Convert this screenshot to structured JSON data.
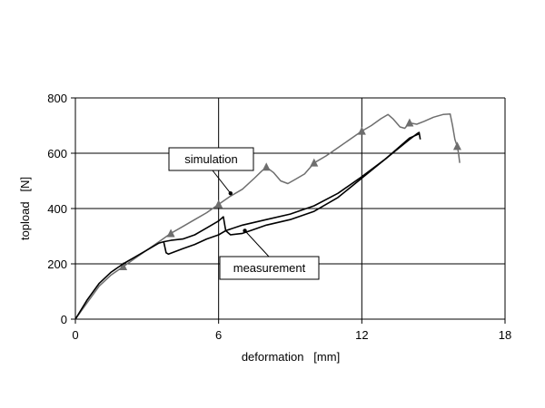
{
  "chart_data": {
    "type": "line",
    "xlabel": "deformation   [mm]",
    "ylabel": "topload   [N]",
    "xlim": [
      0,
      18
    ],
    "ylim": [
      0,
      800
    ],
    "x_ticks": [
      "0",
      "6",
      "12",
      "18"
    ],
    "y_ticks": [
      "0",
      "200",
      "400",
      "600",
      "800"
    ],
    "x_tick_values": [
      0,
      6,
      12,
      18
    ],
    "y_tick_values": [
      0,
      200,
      400,
      600,
      800
    ],
    "grid": true,
    "colors": {
      "simulation": "#6e6e6e",
      "measurement": "#000000"
    },
    "series": [
      {
        "name": "simulation",
        "marker": "triangle",
        "points": [
          [
            0,
            0
          ],
          [
            0.5,
            60
          ],
          [
            1,
            120
          ],
          [
            1.5,
            160
          ],
          [
            2,
            190
          ],
          [
            2.5,
            220
          ],
          [
            3,
            250
          ],
          [
            3.5,
            280
          ],
          [
            4,
            310
          ],
          [
            4.5,
            335
          ],
          [
            5,
            360
          ],
          [
            5.5,
            385
          ],
          [
            6,
            415
          ],
          [
            6.5,
            445
          ],
          [
            7,
            470
          ],
          [
            7.5,
            510
          ],
          [
            7.8,
            535
          ],
          [
            8,
            550
          ],
          [
            8.3,
            530
          ],
          [
            8.6,
            500
          ],
          [
            8.9,
            490
          ],
          [
            9.2,
            505
          ],
          [
            9.6,
            525
          ],
          [
            10,
            565
          ],
          [
            10.5,
            590
          ],
          [
            11,
            620
          ],
          [
            11.5,
            650
          ],
          [
            12,
            680
          ],
          [
            12.4,
            700
          ],
          [
            12.8,
            725
          ],
          [
            13.1,
            740
          ],
          [
            13.3,
            725
          ],
          [
            13.6,
            695
          ],
          [
            13.8,
            690
          ],
          [
            14,
            710
          ],
          [
            14.3,
            705
          ],
          [
            14.6,
            715
          ],
          [
            15,
            730
          ],
          [
            15.4,
            740
          ],
          [
            15.7,
            742
          ],
          [
            15.8,
            700
          ],
          [
            15.9,
            650
          ],
          [
            16,
            625
          ],
          [
            16.05,
            600
          ],
          [
            16.1,
            565
          ]
        ],
        "marker_points": [
          [
            2,
            190
          ],
          [
            4,
            310
          ],
          [
            6,
            415
          ],
          [
            8,
            550
          ],
          [
            10,
            565
          ],
          [
            12,
            680
          ],
          [
            14,
            710
          ],
          [
            16,
            625
          ]
        ]
      },
      {
        "name": "measurement",
        "marker": "none",
        "points": [
          [
            0,
            0
          ],
          [
            0.5,
            70
          ],
          [
            1,
            130
          ],
          [
            1.5,
            170
          ],
          [
            2,
            200
          ],
          [
            2.5,
            225
          ],
          [
            3,
            250
          ],
          [
            3.5,
            275
          ],
          [
            3.7,
            280
          ],
          [
            3.8,
            240
          ],
          [
            3.9,
            235
          ],
          [
            4.5,
            255
          ],
          [
            5,
            270
          ],
          [
            5.5,
            290
          ],
          [
            6,
            305
          ],
          [
            6.3,
            320
          ],
          [
            6.5,
            305
          ],
          [
            7,
            310
          ],
          [
            7.5,
            325
          ],
          [
            8,
            340
          ],
          [
            9,
            360
          ],
          [
            10,
            390
          ],
          [
            11,
            440
          ],
          [
            12,
            510
          ],
          [
            12.5,
            545
          ],
          [
            13,
            580
          ],
          [
            13.5,
            615
          ],
          [
            14,
            650
          ],
          [
            14.3,
            670
          ],
          [
            14.4,
            675
          ],
          [
            14.45,
            650
          ]
        ],
        "branch_points": [
          [
            3.7,
            280
          ],
          [
            4,
            285
          ],
          [
            4.5,
            290
          ],
          [
            5,
            305
          ],
          [
            5.5,
            330
          ],
          [
            6,
            355
          ],
          [
            6.2,
            370
          ],
          [
            6.3,
            320
          ]
        ],
        "upper_branch": [
          [
            6.3,
            320
          ],
          [
            7,
            340
          ],
          [
            8,
            360
          ],
          [
            9,
            380
          ],
          [
            10,
            410
          ],
          [
            11,
            455
          ],
          [
            12,
            515
          ],
          [
            13,
            580
          ],
          [
            14,
            655
          ],
          [
            14.4,
            670
          ]
        ]
      }
    ],
    "annotations": [
      {
        "text": "simulation",
        "target_series": "simulation",
        "target": [
          6.5,
          455
        ]
      },
      {
        "text": "measurement",
        "target_series": "measurement",
        "target": [
          7.1,
          320
        ]
      }
    ]
  }
}
